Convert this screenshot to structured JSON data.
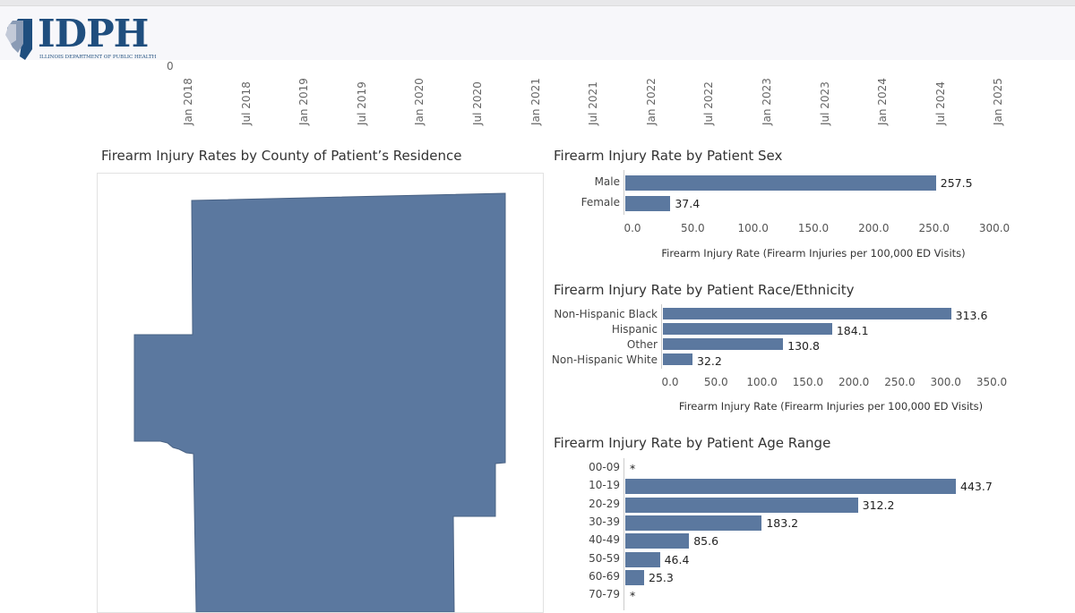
{
  "header": {
    "logo_text": "IDPH",
    "logo_subtitle": "ILLINOIS DEPARTMENT OF PUBLIC HEALTH"
  },
  "trend_axis": {
    "zero_label": "0",
    "date_ticks": [
      "Jan 2018",
      "Jul 2018",
      "Jan 2019",
      "Jul 2019",
      "Jan 2020",
      "Jul 2020",
      "Jan 2021",
      "Jul 2021",
      "Jan 2022",
      "Jul 2022",
      "Jan 2023",
      "Jul 2023",
      "Jan 2024",
      "Jul 2024",
      "Jan 2025"
    ]
  },
  "map": {
    "title": "Firearm Injury Rates by County of Patient’s Residence",
    "fill": "#5b789f"
  },
  "colors": {
    "bar": "#5b789f"
  },
  "chart_data": [
    {
      "type": "bar",
      "orientation": "horizontal",
      "title": "Firearm Injury Rate by Patient Sex",
      "categories": [
        "Male",
        "Female"
      ],
      "values": [
        257.5,
        37.4
      ],
      "labels": [
        "257.5",
        "37.4"
      ],
      "xlim": [
        0,
        300
      ],
      "ticks": [
        "0.0",
        "50.0",
        "100.0",
        "150.0",
        "200.0",
        "250.0",
        "300.0"
      ],
      "xlabel": "Firearm Injury Rate (Firearm Injuries per 100,000 ED Visits)"
    },
    {
      "type": "bar",
      "orientation": "horizontal",
      "title": "Firearm Injury Rate by Patient Race/Ethnicity",
      "categories": [
        "Non-Hispanic Black",
        "Hispanic",
        "Other",
        "Non-Hispanic White"
      ],
      "values": [
        313.6,
        184.1,
        130.8,
        32.2
      ],
      "labels": [
        "313.6",
        "184.1",
        "130.8",
        "32.2"
      ],
      "xlim": [
        0,
        350
      ],
      "ticks": [
        "0.0",
        "50.0",
        "100.0",
        "150.0",
        "200.0",
        "250.0",
        "300.0",
        "350.0"
      ],
      "xlabel": "Firearm Injury Rate (Firearm Injuries per 100,000 ED Visits)"
    },
    {
      "type": "bar",
      "orientation": "horizontal",
      "title": "Firearm Injury Rate by Patient Age Range",
      "categories": [
        "00-09",
        "10-19",
        "20-29",
        "30-39",
        "40-49",
        "50-59",
        "60-69",
        "70-79"
      ],
      "values": [
        null,
        443.7,
        312.2,
        183.2,
        85.6,
        46.4,
        25.3,
        null
      ],
      "labels": [
        "*",
        "443.7",
        "312.2",
        "183.2",
        "85.6",
        "46.4",
        "25.3",
        "*"
      ],
      "xlim": [
        0,
        443.7
      ],
      "ticks": [],
      "xlabel": ""
    }
  ]
}
